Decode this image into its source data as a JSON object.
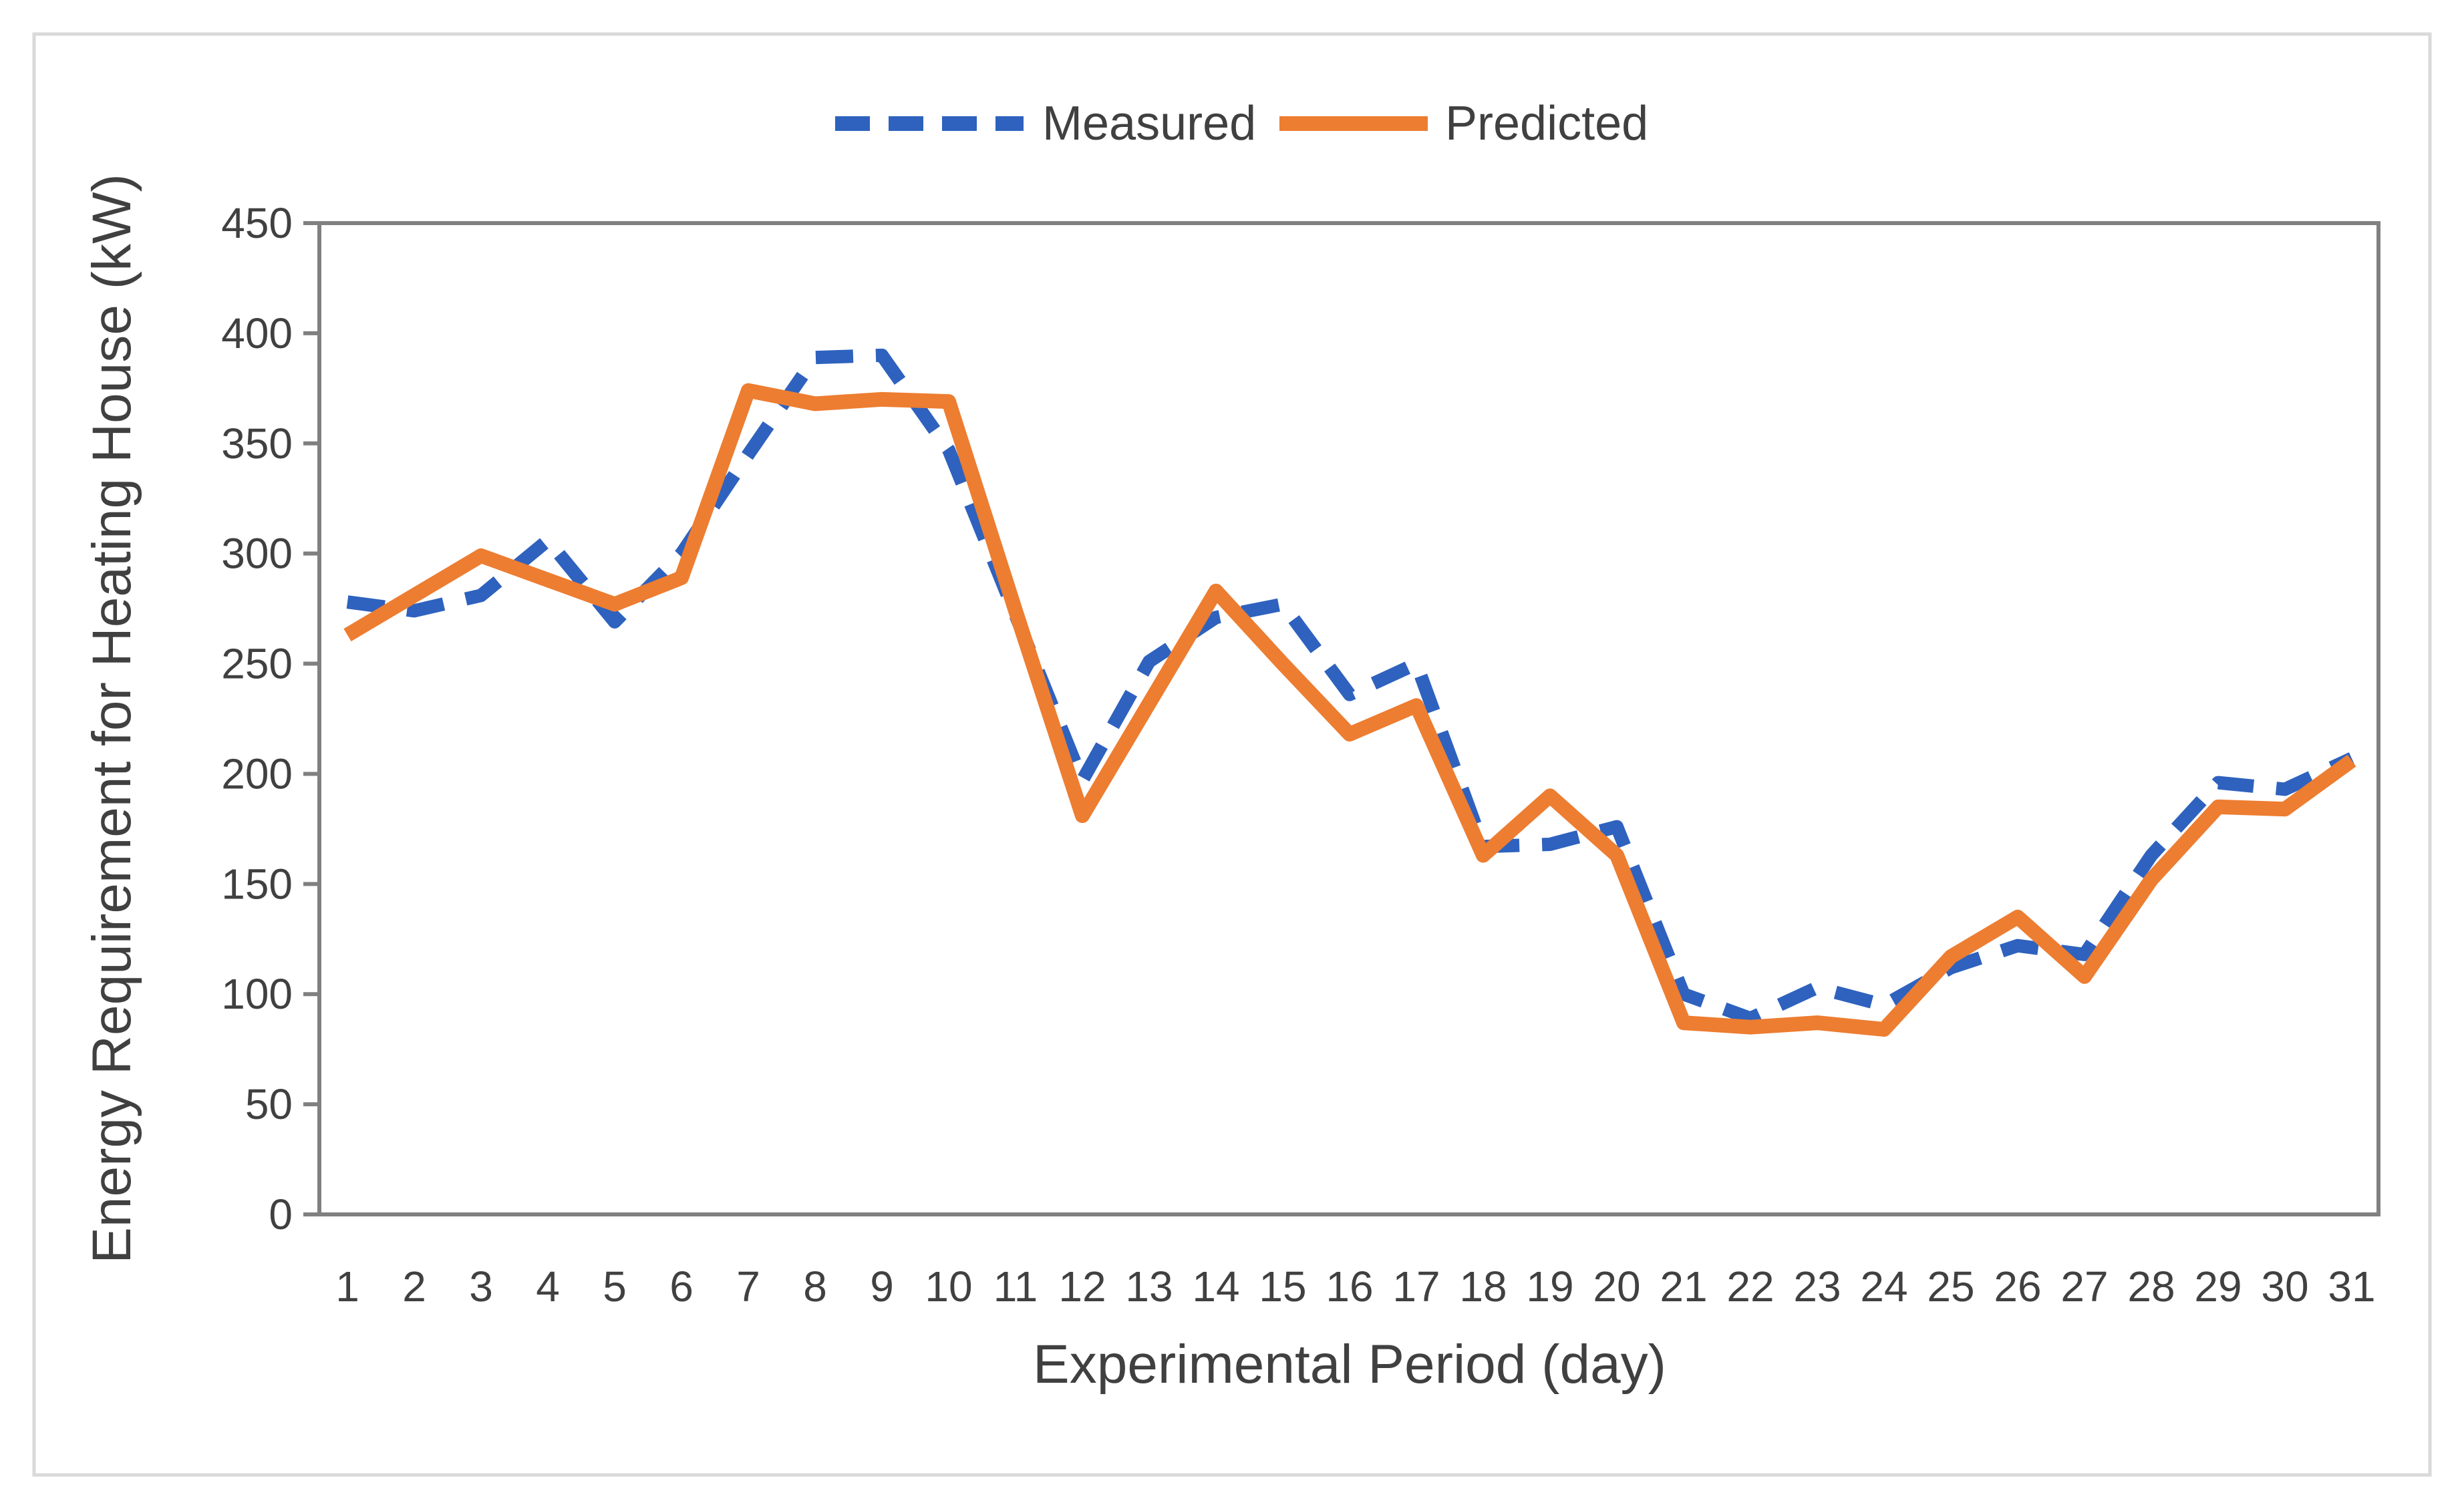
{
  "figure": {
    "background": "#FFFFFF",
    "border_color": "#D9D9D9"
  },
  "chart_data": {
    "type": "line",
    "title": "",
    "xlabel": "Experimental Period (day)",
    "ylabel": "Energy Requirement for Heating House (kW)",
    "x_ticks": [
      1,
      2,
      3,
      4,
      5,
      6,
      7,
      8,
      9,
      10,
      11,
      12,
      13,
      14,
      15,
      16,
      17,
      18,
      19,
      20,
      21,
      22,
      23,
      24,
      25,
      26,
      27,
      28,
      29,
      30,
      31
    ],
    "y_ticks": [
      0,
      50,
      100,
      150,
      200,
      250,
      300,
      350,
      400,
      450
    ],
    "ylim": [
      0,
      450
    ],
    "grid": false,
    "legend_position": "top-center",
    "axis_color": "#808080",
    "text_color": "#404040",
    "series": [
      {
        "name": "Measured",
        "style": "dashed",
        "color": "#2E62BE",
        "values": [
          278,
          274,
          281,
          306,
          269,
          300,
          345,
          389,
          390,
          347,
          272,
          197,
          251,
          271,
          277,
          236,
          250,
          167,
          168,
          176,
          100,
          89,
          103,
          95,
          112,
          122,
          118,
          163,
          196,
          193,
          207
        ]
      },
      {
        "name": "Predicted",
        "style": "solid",
        "color": "#ED7D31",
        "values": [
          263,
          281,
          299,
          288,
          277,
          289,
          374,
          368,
          370,
          369,
          274,
          181,
          232,
          283,
          250,
          218,
          231,
          163,
          190,
          163,
          87,
          85,
          87,
          84,
          117,
          135,
          108,
          152,
          185,
          184,
          206
        ]
      }
    ]
  }
}
